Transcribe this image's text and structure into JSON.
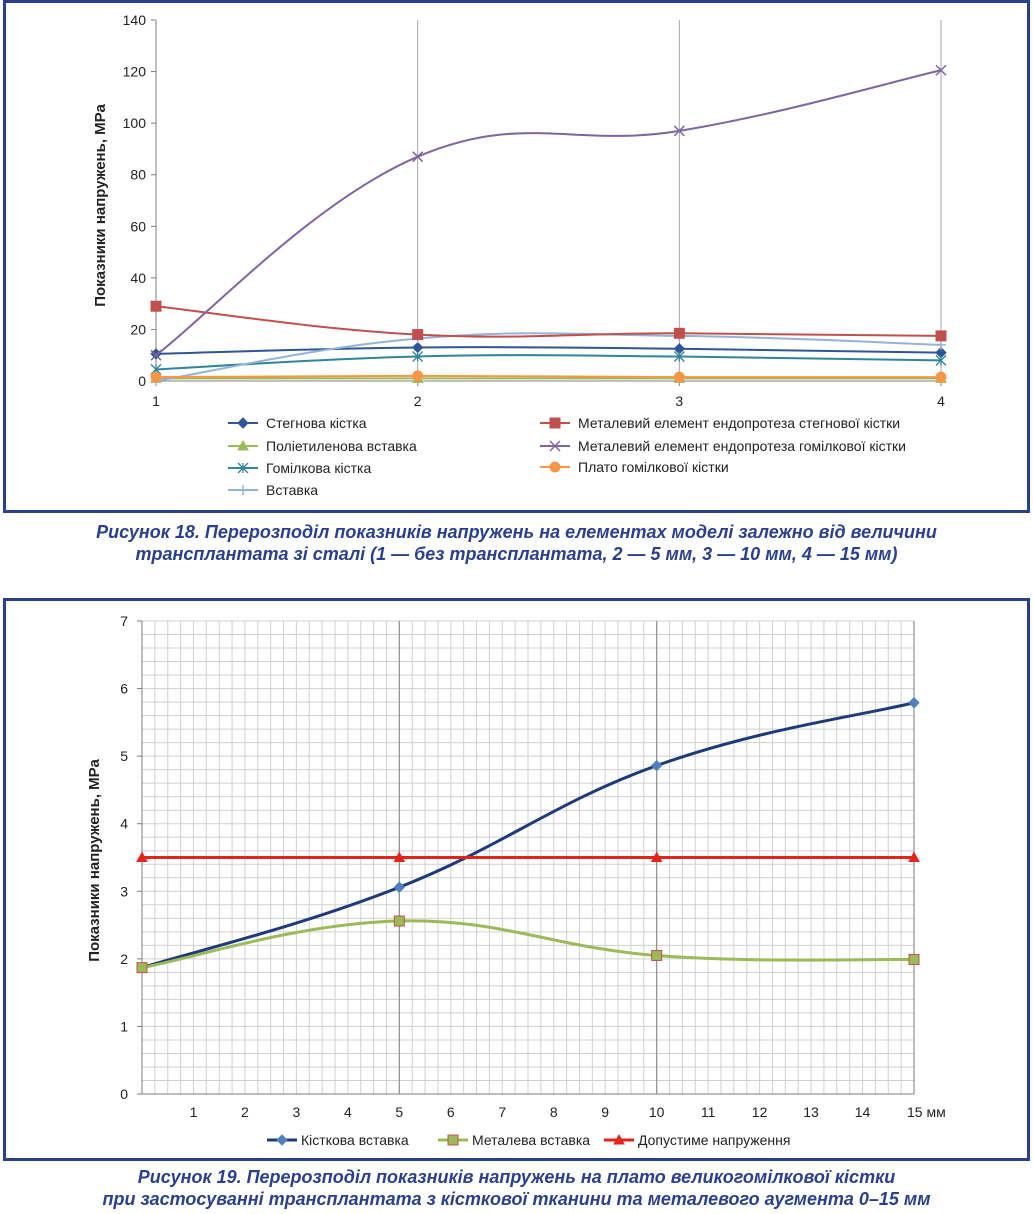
{
  "figure18": {
    "chart_data": {
      "type": "line",
      "x": [
        1,
        2,
        3,
        4
      ],
      "xticks": [
        "1",
        "2",
        "3",
        "4"
      ],
      "ylabel": "Показники напружень, МРа",
      "ylim": [
        0,
        140
      ],
      "yticks": [
        "0",
        "20",
        "40",
        "60",
        "80",
        "100",
        "120",
        "140"
      ],
      "grid": "vertical",
      "legend_position": "bottom",
      "series": [
        {
          "name": "Стегнова кістка",
          "values": [
            10.5,
            13,
            12.5,
            11
          ],
          "color": "#2f5597",
          "marker": "diamond"
        },
        {
          "name": "Поліетиленова вставка",
          "values": [
            1,
            1,
            1,
            1
          ],
          "color": "#9bbb59",
          "marker": "triangle"
        },
        {
          "name": "Гомілкова кістка",
          "values": [
            4.5,
            9.5,
            9.5,
            8
          ],
          "color": "#31859b",
          "marker": "asterisk"
        },
        {
          "name": "Вставка",
          "values": [
            0,
            16.5,
            17.5,
            14
          ],
          "color": "#95b3d7",
          "marker": "plus"
        },
        {
          "name": "Металевий елемент ендопротеза стегнової кістки",
          "values": [
            29,
            18,
            18.5,
            17.5
          ],
          "color": "#c0504d",
          "marker": "square"
        },
        {
          "name": "Металевий елемент ендопротеза гомілкової кістки",
          "values": [
            10,
            87,
            97,
            120.5
          ],
          "color": "#8064a2",
          "marker": "x"
        },
        {
          "name": "Плато гомілкової кістки",
          "values": [
            1.5,
            2,
            1.5,
            1.5
          ],
          "color": "#f79646",
          "marker": "circle"
        }
      ]
    },
    "caption_line1": "Рисунок 18. Перерозподіл показників напружень на елементах моделі залежно від величини",
    "caption_line2": "трансплантата зі сталі (1 — без трансплантата, 2 — 5 мм, 3 — 10 мм, 4 — 15 мм)"
  },
  "figure19": {
    "chart_data": {
      "type": "line",
      "x": [
        0,
        5,
        10,
        15
      ],
      "xlim": [
        0,
        15
      ],
      "xticks": [
        "1",
        "2",
        "3",
        "4",
        "5",
        "6",
        "7",
        "8",
        "9",
        "10",
        "11",
        "12",
        "13",
        "14",
        "15 мм"
      ],
      "ylabel": "Показники напружень, МРа",
      "ylim": [
        0,
        7
      ],
      "yticks": [
        "0",
        "1",
        "2",
        "3",
        "4",
        "5",
        "6",
        "7"
      ],
      "grid": "major and minor",
      "legend_position": "bottom",
      "series": [
        {
          "name": "Кісткова вставка",
          "values": [
            1.87,
            3.06,
            4.86,
            5.79
          ],
          "color": "#1f3a7a",
          "marker": "diamond"
        },
        {
          "name": "Металева вставка",
          "values": [
            1.87,
            2.56,
            2.05,
            1.99
          ],
          "color": "#9bbb59",
          "marker": "square"
        },
        {
          "name": "Допустиме напруження",
          "values": [
            3.5,
            3.5,
            3.5,
            3.5
          ],
          "color": "#e3241b",
          "marker": "triangle"
        }
      ]
    },
    "caption_line1": "Рисунок 19. Перерозподіл показників напружень на плато великогомілкової кістки",
    "caption_line2": "при застосуванні трансплантата з кісткової тканини та металевого аугмента 0–15 мм"
  }
}
